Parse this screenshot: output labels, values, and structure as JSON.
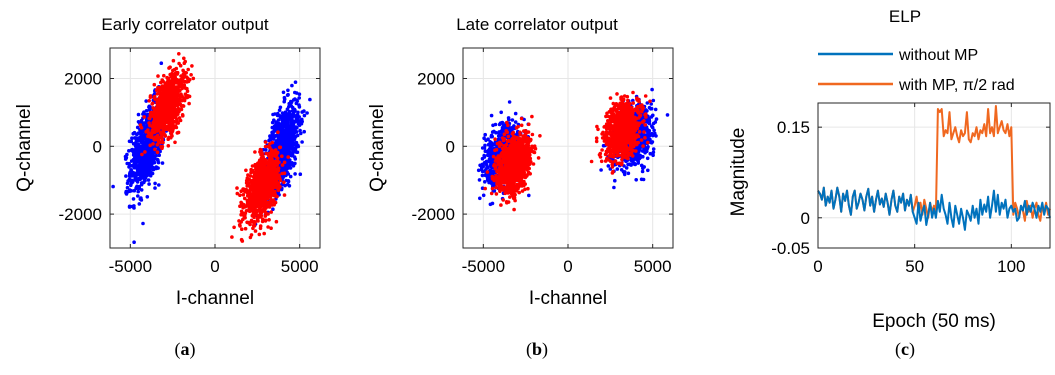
{
  "chart_data": [
    {
      "id": "a",
      "type": "scatter",
      "title": "Early correlator output",
      "xlabel": "I-channel",
      "ylabel": "Q-channel",
      "xlim": [
        -6200,
        6200
      ],
      "ylim": [
        -3000,
        2900
      ],
      "xticks": [
        -5000,
        0,
        5000
      ],
      "xtick_labels": [
        "-5000",
        "0",
        "5000"
      ],
      "yticks": [
        -2000,
        0,
        2000
      ],
      "ytick_labels": [
        "-2000",
        "0",
        "2000"
      ],
      "grid": true,
      "caption": "a",
      "series": [
        {
          "color": "#0000ff",
          "clusters": [
            {
              "cx": -4000,
              "cy": 0,
              "sx": 500,
              "sy": 650,
              "rho": 0.55,
              "n": 900
            },
            {
              "cx": 4000,
              "cy": 0,
              "sx": 500,
              "sy": 650,
              "rho": 0.55,
              "n": 900
            }
          ]
        },
        {
          "color": "#ff0000",
          "clusters": [
            {
              "cx": -2800,
              "cy": 1200,
              "sx": 500,
              "sy": 480,
              "rho": 0.5,
              "n": 1000
            },
            {
              "cx": 2800,
              "cy": -1200,
              "sx": 500,
              "sy": 480,
              "rho": 0.5,
              "n": 1000
            }
          ]
        }
      ]
    },
    {
      "id": "b",
      "type": "scatter",
      "title": "Late correlator output",
      "xlabel": "I-channel",
      "ylabel": "Q-channel",
      "xlim": [
        -6200,
        6200
      ],
      "ylim": [
        -3000,
        2900
      ],
      "xticks": [
        -5000,
        0,
        5000
      ],
      "xtick_labels": [
        "-5000",
        "0",
        "5000"
      ],
      "yticks": [
        -2000,
        0,
        2000
      ],
      "ytick_labels": [
        "-2000",
        "0",
        "2000"
      ],
      "grid": true,
      "caption": "b",
      "series": [
        {
          "color": "#0000ff",
          "clusters": [
            {
              "cx": -3800,
              "cy": -300,
              "sx": 550,
              "sy": 450,
              "rho": 0.25,
              "n": 800
            },
            {
              "cx": 3800,
              "cy": 300,
              "sx": 550,
              "sy": 450,
              "rho": 0.25,
              "n": 800
            }
          ]
        },
        {
          "color": "#ff0000",
          "clusters": [
            {
              "cx": -3200,
              "cy": -500,
              "sx": 500,
              "sy": 420,
              "rho": 0.3,
              "n": 1000
            },
            {
              "cx": 3200,
              "cy": 500,
              "sx": 500,
              "sy": 420,
              "rho": 0.3,
              "n": 1000
            }
          ]
        }
      ]
    },
    {
      "id": "c",
      "type": "line",
      "title": "ELP",
      "xlabel": "Epoch (50 ms)",
      "ylabel": "Magnitude",
      "xlim": [
        0,
        120
      ],
      "ylim": [
        -0.05,
        0.19
      ],
      "xticks": [
        0,
        50,
        100
      ],
      "xtick_labels": [
        "0",
        "50",
        "100"
      ],
      "yticks": [
        -0.05,
        0,
        0.15
      ],
      "ytick_labels": [
        "-0.05",
        "0",
        "0.15"
      ],
      "grid": true,
      "caption": "c",
      "legend": [
        "without MP",
        "with MP, π/2 rad"
      ],
      "legend_placement": "top, outside",
      "series": [
        {
          "name": "without MP",
          "color": "#0072bd",
          "x_start": 0,
          "x_step": 1,
          "values": [
            0.045,
            0.04,
            0.03,
            0.05,
            0.02,
            0.035,
            0.025,
            0.045,
            0.015,
            0.03,
            0.05,
            0.035,
            0.01,
            0.04,
            0.028,
            0.045,
            0.02,
            0.005,
            0.035,
            0.045,
            0.015,
            0.025,
            0.04,
            0.03,
            0.012,
            0.035,
            0.048,
            0.02,
            0.035,
            0.01,
            0.03,
            0.045,
            0.022,
            0.032,
            0.018,
            0.04,
            0.025,
            0.005,
            0.03,
            0.045,
            0.02,
            0.01,
            0.035,
            0.025,
            0.04,
            0.012,
            0.03,
            0.02,
            0.038,
            0.01,
            0.0,
            -0.01,
            0.025,
            -0.005,
            0.01,
            0.02,
            -0.012,
            0.005,
            0.025,
            0.0,
            0.015,
            0.0,
            0.028,
            0.01,
            0.038,
            0.015,
            0.005,
            -0.01,
            0.025,
            0.0,
            -0.015,
            0.02,
            0.005,
            -0.01,
            0.015,
            0.0,
            -0.02,
            0.012,
            0.005,
            -0.005,
            0.02,
            0.0,
            0.015,
            -0.01,
            0.03,
            0.005,
            0.022,
            0.01,
            0.035,
            0.0,
            0.02,
            0.045,
            0.01,
            0.038,
            0.005,
            0.025,
            0.015,
            0.03,
            0.0,
            0.015,
            0.02,
            0.01,
            0.015,
            -0.005,
            0.0,
            0.02,
            0.012,
            0.028,
            0.005,
            0.02,
            0.01,
            0.025,
            0.015,
            0.0,
            0.02,
            0.01,
            0.025,
            0.005,
            0.02,
            0.015,
            0.0
          ]
        },
        {
          "name": "with MP, π/2 rad",
          "color": "#f06820",
          "x_start": 0,
          "x_step": 1,
          "values": [
            0.045,
            0.04,
            0.03,
            0.05,
            0.02,
            0.035,
            0.025,
            0.045,
            0.015,
            0.03,
            0.05,
            0.035,
            0.01,
            0.04,
            0.028,
            0.045,
            0.02,
            0.005,
            0.035,
            0.045,
            0.015,
            0.025,
            0.04,
            0.03,
            0.012,
            0.035,
            0.048,
            0.02,
            0.035,
            0.01,
            0.03,
            0.045,
            0.022,
            0.032,
            0.018,
            0.04,
            0.025,
            0.005,
            0.03,
            0.045,
            0.02,
            0.01,
            0.035,
            0.025,
            0.04,
            0.012,
            0.03,
            0.02,
            0.038,
            0.01,
            0.02,
            0.035,
            0.01,
            0.025,
            0.005,
            0.03,
            0.015,
            0.0,
            0.025,
            0.01,
            0.02,
            0.008,
            0.18,
            0.175,
            0.18,
            0.135,
            0.145,
            0.14,
            0.175,
            0.13,
            0.14,
            0.15,
            0.135,
            0.125,
            0.145,
            0.135,
            0.14,
            0.175,
            0.13,
            0.125,
            0.14,
            0.135,
            0.15,
            0.13,
            0.145,
            0.14,
            0.155,
            0.135,
            0.18,
            0.14,
            0.15,
            0.135,
            0.185,
            0.14,
            0.15,
            0.16,
            0.145,
            0.14,
            0.155,
            0.135,
            0.15,
            0.005,
            0.025,
            0.015,
            0.0,
            0.02,
            0.012,
            -0.005,
            0.028,
            0.01,
            0.02,
            0.0,
            0.015,
            0.025,
            0.005,
            -0.005,
            0.02,
            0.01,
            0.025,
            0.005,
            0.015
          ]
        }
      ]
    }
  ]
}
